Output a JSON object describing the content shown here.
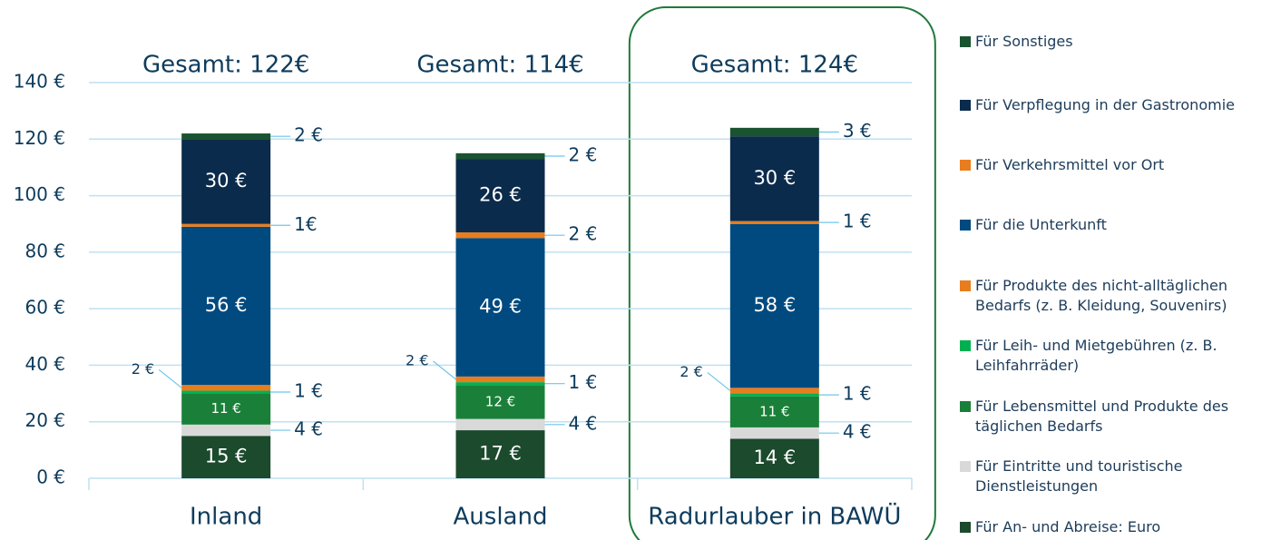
{
  "chart_data": {
    "type": "bar",
    "stacked": true,
    "categories": [
      "Inland",
      "Ausland",
      "Radurlauber in BAWÜ"
    ],
    "annotations": [
      "Gesamt: 122€",
      "Gesamt: 114€",
      "Gesamt: 124€"
    ],
    "series": [
      {
        "name": "Für An- und Abreise: Euro",
        "color": "#1b4a2c",
        "values": [
          15,
          17,
          14
        ],
        "value_labels": [
          "15 €",
          "17 €",
          "14 €"
        ]
      },
      {
        "name": "Für Eintritte und touristische Dienstleistungen",
        "color": "#d9d9d9",
        "values": [
          4,
          4,
          4
        ],
        "value_labels": [
          "4 €",
          "4 €",
          "4 €"
        ]
      },
      {
        "name": "Für Lebensmittel und Produkte des täglichen Bedarfs",
        "color": "#1a8039",
        "values": [
          11,
          12,
          11
        ],
        "value_labels": [
          "11 €",
          "12 €",
          "11 €"
        ]
      },
      {
        "name": "Für Leih- und Mietgebühren (z. B. Leihfahrräder)",
        "color": "#00b050",
        "values": [
          1,
          1,
          1
        ],
        "value_labels": [
          "1 €",
          "1 €",
          "1 €"
        ]
      },
      {
        "name": "Für Produkte des nicht-alltäglichen Bedarfs (z. B. Kleidung, Souvenirs)",
        "color": "#e87d1e",
        "values": [
          2,
          2,
          2
        ],
        "value_labels": [
          "2 €",
          "2 €",
          "2 €"
        ]
      },
      {
        "name": "Für die Unterkunft",
        "color": "#004a7f",
        "values": [
          56,
          49,
          58
        ],
        "value_labels": [
          "56 €",
          "49 €",
          "58 €"
        ]
      },
      {
        "name": "Für Verkehrsmittel vor Ort",
        "color": "#e87d1e",
        "values": [
          1,
          2,
          1
        ],
        "value_labels": [
          "1€",
          "2 €",
          "1 €"
        ]
      },
      {
        "name": "Für Verpflegung in der Gastronomie",
        "color": "#0b2b4c",
        "values": [
          30,
          26,
          30
        ],
        "value_labels": [
          "30 €",
          "26 €",
          "30 €"
        ]
      },
      {
        "name": "Für Sonstiges",
        "color": "#1a5330",
        "values": [
          2,
          2,
          3
        ],
        "value_labels": [
          "2 €",
          "2 €",
          "3 €"
        ]
      }
    ],
    "ylim": [
      0,
      140
    ],
    "yticks": [
      {
        "value": 0,
        "label": "0 €"
      },
      {
        "value": 20,
        "label": "20 €"
      },
      {
        "value": 40,
        "label": "40 €"
      },
      {
        "value": 60,
        "label": "60 €"
      },
      {
        "value": 80,
        "label": "80 €"
      },
      {
        "value": 100,
        "label": "100 €"
      },
      {
        "value": 120,
        "label": "120 €"
      },
      {
        "value": 140,
        "label": "140 €"
      }
    ],
    "grid": true,
    "highlight": 2
  }
}
